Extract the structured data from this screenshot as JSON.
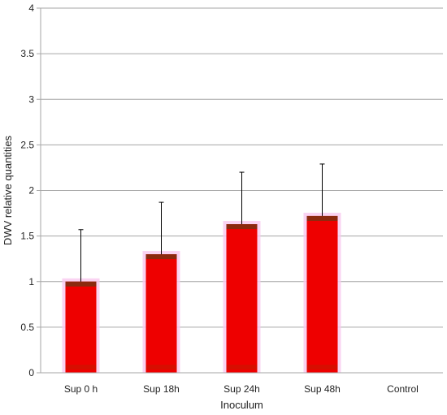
{
  "chart_data": {
    "type": "bar",
    "title": "",
    "xlabel": "Inoculum",
    "ylabel": "DWV relative quantities",
    "categories": [
      "Sup 0 h",
      "Sup 18h",
      "Sup 24h",
      "Sup 48h",
      "Control"
    ],
    "values": [
      1.0,
      1.3,
      1.63,
      1.72,
      0
    ],
    "error_upper": [
      1.57,
      1.87,
      2.2,
      2.29,
      null
    ],
    "ylim": [
      0,
      4
    ],
    "yticks": [
      "0",
      "0.5",
      "1",
      "1.5",
      "2",
      "2.5",
      "3",
      "3.5",
      "4"
    ],
    "grid": true,
    "legend": "none",
    "colors": {
      "bar_fill": "#ee0000",
      "bar_top_band": "#8b2a0f",
      "bar_glow": "#f9c8ef",
      "gridline": "#a6a6a6",
      "error_bar": "#000000"
    }
  }
}
